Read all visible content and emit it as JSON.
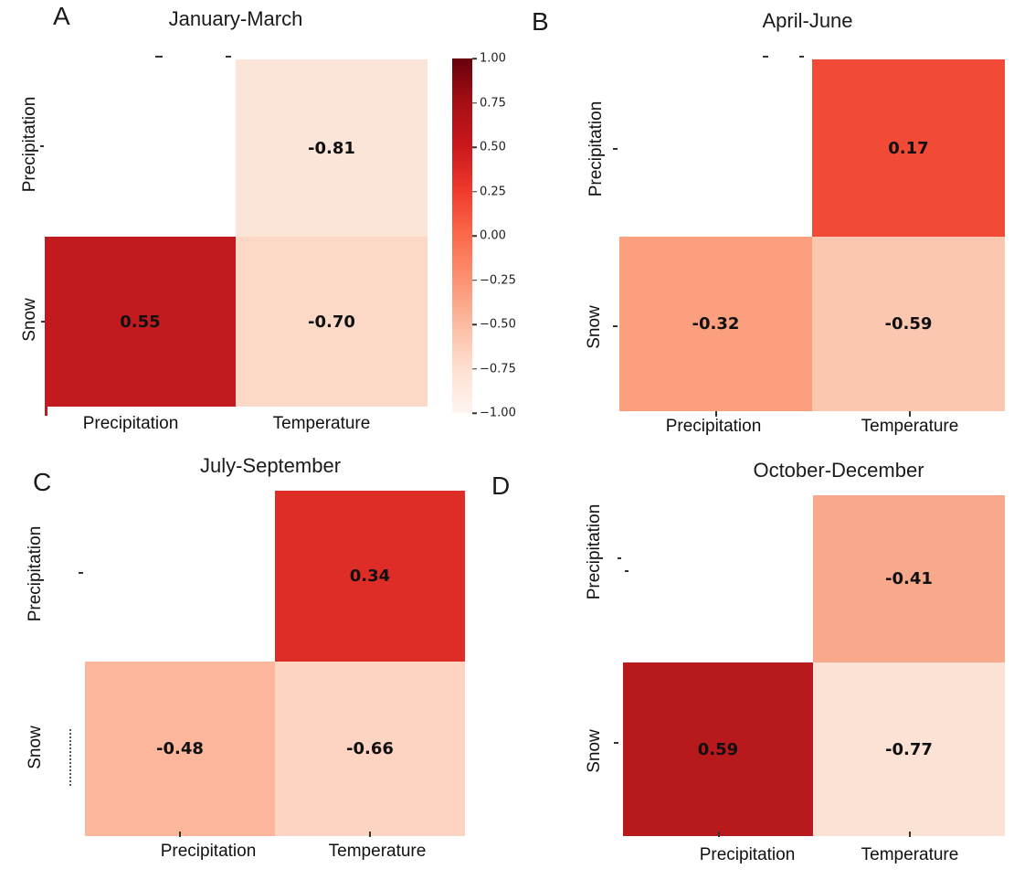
{
  "figure": {
    "panels": [
      {
        "letter": "A",
        "title": "January-March",
        "y_labels": [
          "Precipitation",
          "Snow"
        ],
        "x_labels": [
          "Precipitation",
          "Temperature"
        ],
        "cells": {
          "top_right": {
            "value": "-0.81",
            "color": "#fbe5d8"
          },
          "bottom_left": {
            "value": "0.55",
            "color": "#c11b20"
          },
          "bottom_right": {
            "value": "-0.70",
            "color": "#fcd8c7"
          }
        }
      },
      {
        "letter": "B",
        "title": "April-June",
        "y_labels": [
          "Precipitation",
          "Snow"
        ],
        "x_labels": [
          "Precipitation",
          "Temperature"
        ],
        "cells": {
          "top_right": {
            "value": "0.17",
            "color": "#f14a36"
          },
          "bottom_left": {
            "value": "-0.32",
            "color": "#fb9f7e"
          },
          "bottom_right": {
            "value": "-0.59",
            "color": "#fcc7b0"
          }
        }
      },
      {
        "letter": "C",
        "title": "July-September",
        "y_labels": [
          "Precipitation",
          "Snow"
        ],
        "x_labels": [
          "Precipitation",
          "Temperature"
        ],
        "cells": {
          "top_right": {
            "value": "0.34",
            "color": "#de2d26"
          },
          "bottom_left": {
            "value": "-0.48",
            "color": "#fbb69c"
          },
          "bottom_right": {
            "value": "-0.66",
            "color": "#fdd4c2"
          }
        }
      },
      {
        "letter": "D",
        "title": "October-December",
        "y_labels": [
          "Precipitation",
          "Snow"
        ],
        "x_labels": [
          "Precipitation",
          "Temperature"
        ],
        "cells": {
          "top_right": {
            "value": "-0.41",
            "color": "#f8a98b"
          },
          "bottom_left": {
            "value": "0.59",
            "color": "#b8191d"
          },
          "bottom_right": {
            "value": "-0.77",
            "color": "#fce2d4"
          }
        }
      }
    ],
    "colorbar": {
      "tick_labels": [
        "1.00",
        "0.75",
        "0.50",
        "0.25",
        "0.00",
        "−0.25",
        "−0.50",
        "−0.75",
        "−1.00"
      ],
      "gradient_stops": [
        "#67000d",
        "#a50f15",
        "#cb181d",
        "#ef3b2c",
        "#fb6a4a",
        "#fc9272",
        "#fcbba1",
        "#fee0d2",
        "#fff5f0"
      ]
    }
  },
  "chart_data": [
    {
      "type": "heatmap",
      "panel": "A",
      "title": "January-March",
      "rows": [
        "Precipitation",
        "Snow"
      ],
      "columns": [
        "Precipitation",
        "Temperature"
      ],
      "values": [
        [
          null,
          -0.81
        ],
        [
          0.55,
          -0.7
        ]
      ],
      "colormap": "Reds",
      "vmin": -1.0,
      "vmax": 1.0,
      "colorbar_ticks": [
        1.0,
        0.75,
        0.5,
        0.25,
        0.0,
        -0.25,
        -0.5,
        -0.75,
        -1.0
      ],
      "masked_cells": [
        [
          0,
          0
        ]
      ]
    },
    {
      "type": "heatmap",
      "panel": "B",
      "title": "April-June",
      "rows": [
        "Precipitation",
        "Snow"
      ],
      "columns": [
        "Precipitation",
        "Temperature"
      ],
      "values": [
        [
          null,
          0.17
        ],
        [
          -0.32,
          -0.59
        ]
      ],
      "colormap": "Reds",
      "vmin": -1.0,
      "vmax": 1.0,
      "masked_cells": [
        [
          0,
          0
        ]
      ]
    },
    {
      "type": "heatmap",
      "panel": "C",
      "title": "July-September",
      "rows": [
        "Precipitation",
        "Snow"
      ],
      "columns": [
        "Precipitation",
        "Temperature"
      ],
      "values": [
        [
          null,
          0.34
        ],
        [
          -0.48,
          -0.66
        ]
      ],
      "colormap": "Reds",
      "vmin": -1.0,
      "vmax": 1.0,
      "masked_cells": [
        [
          0,
          0
        ]
      ]
    },
    {
      "type": "heatmap",
      "panel": "D",
      "title": "October-December",
      "rows": [
        "Precipitation",
        "Snow"
      ],
      "columns": [
        "Precipitation",
        "Temperature"
      ],
      "values": [
        [
          null,
          -0.41
        ],
        [
          0.59,
          -0.77
        ]
      ],
      "colormap": "Reds",
      "vmin": -1.0,
      "vmax": 1.0,
      "masked_cells": [
        [
          0,
          0
        ]
      ]
    }
  ]
}
